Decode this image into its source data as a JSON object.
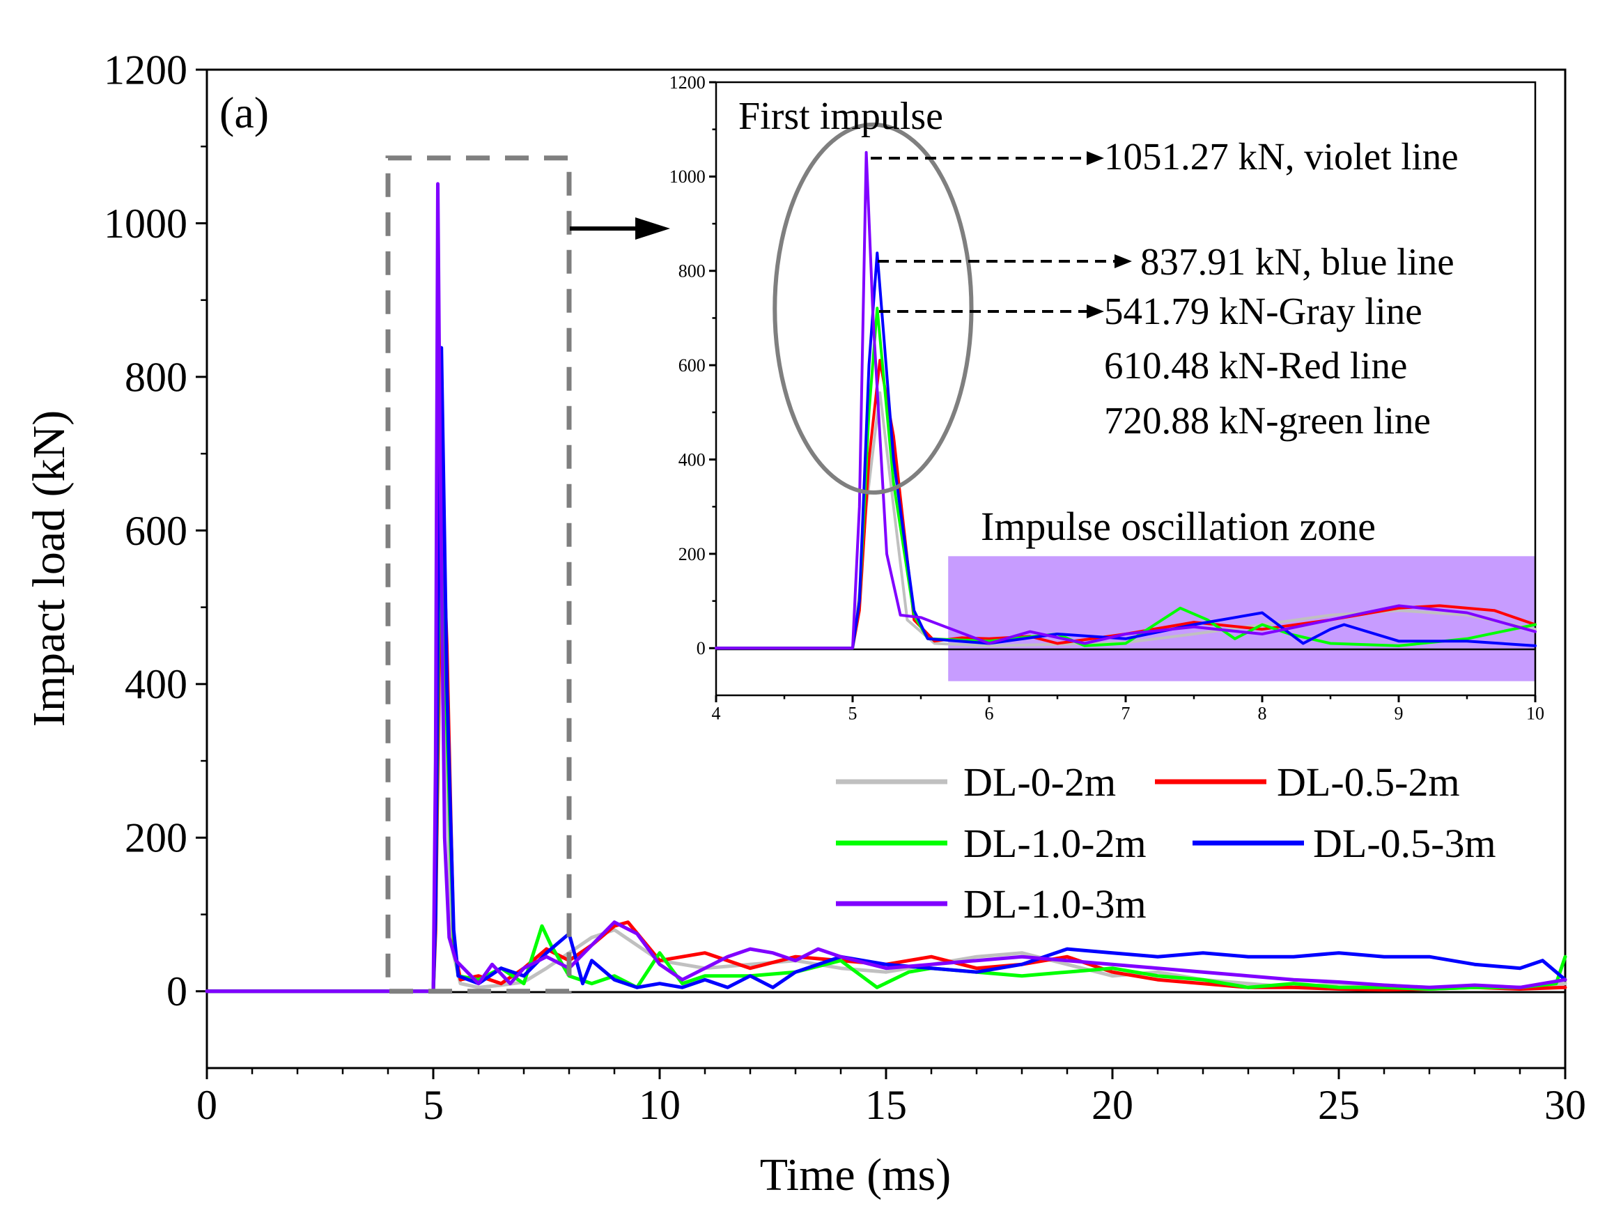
{
  "chart_data": [
    {
      "type": "line",
      "panel_label": "(a)",
      "xlabel": "Time (ms)",
      "ylabel": "Impact load (kN)",
      "xlim": [
        0,
        30
      ],
      "ylim": [
        -100,
        1200
      ],
      "xticks": [
        0,
        5,
        10,
        15,
        20,
        25,
        30
      ],
      "yticks": [
        0,
        200,
        400,
        600,
        800,
        1000,
        1200
      ],
      "xtick_labels": [
        "0",
        "5",
        "10",
        "15",
        "20",
        "25",
        "30"
      ],
      "ytick_labels": [
        "0",
        "200",
        "400",
        "600",
        "800",
        "1000",
        "1200"
      ],
      "grid": false,
      "legend_position": "lower-right",
      "zoom_region": {
        "x": [
          4,
          8
        ],
        "y": [
          0,
          1085
        ]
      },
      "series": [
        {
          "name": "DL-0-2m",
          "color": "#c0c0c0",
          "x": [
            0,
            5.0,
            5.05,
            5.15,
            5.2,
            5.3,
            5.4,
            5.6,
            6.0,
            6.5,
            7.0,
            7.5,
            8.0,
            8.5,
            9.0,
            10.0,
            11.0,
            12.0,
            13.0,
            14.0,
            15.0,
            16.0,
            17.0,
            18.0,
            19.0,
            20.0,
            21.0,
            22.0,
            23.0,
            24.0,
            25.0,
            26.0,
            27.0,
            28.0,
            29.0,
            30.0
          ],
          "y": [
            0,
            0,
            120,
            420,
            541.79,
            300,
            60,
            10,
            5,
            8,
            12,
            30,
            50,
            70,
            80,
            40,
            30,
            35,
            40,
            30,
            25,
            35,
            45,
            50,
            35,
            20,
            25,
            15,
            10,
            5,
            10,
            8,
            5,
            5,
            5,
            10
          ]
        },
        {
          "name": "DL-0.5-2m",
          "color": "#ff0000",
          "x": [
            0,
            5.0,
            5.05,
            5.12,
            5.2,
            5.3,
            5.45,
            5.6,
            6.0,
            6.5,
            7.0,
            7.5,
            8.0,
            8.5,
            9.0,
            9.3,
            10.0,
            11.0,
            12.0,
            13.0,
            14.0,
            15.0,
            16.0,
            17.0,
            18.0,
            19.0,
            20.0,
            21.0,
            22.0,
            23.0,
            24.0,
            25.0,
            26.0,
            27.0,
            28.0,
            29.0,
            30.0
          ],
          "y": [
            0,
            0,
            80,
            400,
            610.48,
            450,
            60,
            15,
            20,
            10,
            30,
            55,
            40,
            60,
            85,
            90,
            40,
            50,
            30,
            45,
            40,
            35,
            45,
            30,
            35,
            45,
            25,
            15,
            10,
            5,
            5,
            3,
            2,
            3,
            5,
            3,
            5
          ]
        },
        {
          "name": "DL-1.0-2m",
          "color": "#00ff00",
          "x": [
            0,
            5.0,
            5.05,
            5.12,
            5.18,
            5.3,
            5.45,
            5.55,
            6.0,
            6.5,
            7.0,
            7.4,
            7.6,
            8.0,
            8.5,
            9.0,
            9.5,
            10.0,
            10.5,
            11.0,
            12.0,
            13.0,
            14.0,
            14.8,
            15.5,
            16.0,
            17.0,
            18.0,
            19.0,
            20.0,
            21.0,
            22.0,
            23.0,
            24.0,
            25.0,
            26.0,
            27.0,
            28.0,
            29.0,
            29.8,
            30.0
          ],
          "y": [
            0,
            0,
            100,
            500,
            720.88,
            350,
            70,
            20,
            15,
            30,
            10,
            85,
            60,
            20,
            10,
            20,
            5,
            50,
            10,
            20,
            20,
            25,
            40,
            5,
            25,
            30,
            25,
            20,
            25,
            30,
            20,
            15,
            5,
            10,
            5,
            5,
            3,
            5,
            5,
            10,
            45
          ]
        },
        {
          "name": "DL-0.5-3m",
          "color": "#0000ff",
          "x": [
            0,
            5.0,
            5.05,
            5.12,
            5.18,
            5.3,
            5.45,
            5.55,
            6.0,
            6.5,
            7.0,
            7.5,
            8.0,
            8.3,
            8.5,
            9.0,
            9.5,
            10.0,
            10.5,
            11.0,
            11.5,
            12.0,
            12.5,
            13.0,
            14.0,
            15.0,
            16.0,
            17.0,
            18.0,
            19.0,
            20.0,
            21.0,
            22.0,
            23.0,
            24.0,
            25.0,
            26.0,
            27.0,
            28.0,
            29.0,
            29.5,
            30.0
          ],
          "y": [
            0,
            0,
            100,
            600,
            837.91,
            400,
            80,
            20,
            10,
            30,
            20,
            50,
            75,
            10,
            40,
            15,
            5,
            10,
            5,
            15,
            5,
            20,
            5,
            25,
            45,
            35,
            30,
            25,
            35,
            55,
            50,
            45,
            50,
            45,
            45,
            50,
            45,
            45,
            35,
            30,
            40,
            15
          ]
        },
        {
          "name": "DL-1.0-3m",
          "color": "#8000ff",
          "x": [
            0,
            5.0,
            5.05,
            5.1,
            5.15,
            5.25,
            5.35,
            5.5,
            6.0,
            6.3,
            6.7,
            7.0,
            7.5,
            8.0,
            8.5,
            9.0,
            9.5,
            10.0,
            10.5,
            11.0,
            11.5,
            12.0,
            12.5,
            13.0,
            13.5,
            14.0,
            15.0,
            16.0,
            17.0,
            18.0,
            19.0,
            20.0,
            21.0,
            22.0,
            23.0,
            24.0,
            25.0,
            26.0,
            27.0,
            28.0,
            29.0,
            30.0
          ],
          "y": [
            0,
            0,
            300,
            1051.27,
            700,
            200,
            70,
            40,
            10,
            35,
            10,
            30,
            45,
            30,
            60,
            90,
            75,
            35,
            15,
            30,
            45,
            55,
            50,
            40,
            55,
            45,
            30,
            35,
            40,
            45,
            40,
            35,
            30,
            25,
            20,
            15,
            12,
            8,
            5,
            8,
            5,
            15
          ]
        }
      ]
    },
    {
      "type": "line",
      "role": "inset",
      "xlim": [
        4,
        10
      ],
      "ylim": [
        -100,
        1200
      ],
      "xticks": [
        4,
        5,
        6,
        7,
        8,
        9,
        10
      ],
      "yticks": [
        0,
        200,
        400,
        600,
        800,
        1000,
        1200
      ],
      "xtick_labels": [
        "4",
        "5",
        "6",
        "7",
        "8",
        "9",
        "10"
      ],
      "ytick_labels": [
        "0",
        "200",
        "400",
        "600",
        "800",
        "1000",
        "1200"
      ],
      "highlight_zone": {
        "x": [
          5.7,
          10
        ],
        "y": [
          -70,
          195
        ],
        "color": "#c79cff"
      },
      "peak_circle": {
        "cx": 5.15,
        "cy": 720,
        "rx": 0.72,
        "ry": 390
      },
      "series": [
        {
          "name": "DL-0-2m",
          "color": "#c0c0c0",
          "x": [
            4,
            5.0,
            5.05,
            5.1,
            5.15,
            5.2,
            5.3,
            5.4,
            5.6,
            6.0,
            6.5,
            7.0,
            7.5,
            8.0,
            8.5,
            9.0,
            9.5,
            10.0
          ],
          "y": [
            0,
            0,
            120,
            300,
            420,
            541.79,
            300,
            60,
            10,
            5,
            8,
            12,
            30,
            50,
            70,
            80,
            70,
            40
          ]
        },
        {
          "name": "DL-0.5-2m",
          "color": "#ff0000",
          "x": [
            4,
            5.0,
            5.05,
            5.12,
            5.2,
            5.3,
            5.45,
            5.6,
            5.8,
            6.0,
            6.3,
            6.5,
            7.0,
            7.5,
            8.0,
            8.5,
            9.0,
            9.3,
            9.7,
            10.0
          ],
          "y": [
            0,
            0,
            80,
            400,
            610.48,
            450,
            60,
            15,
            22,
            20,
            25,
            10,
            30,
            55,
            40,
            60,
            85,
            90,
            80,
            50
          ]
        },
        {
          "name": "DL-1.0-2m",
          "color": "#00ff00",
          "x": [
            4,
            5.0,
            5.05,
            5.12,
            5.18,
            5.3,
            5.45,
            5.55,
            6.0,
            6.5,
            6.7,
            7.0,
            7.4,
            7.6,
            7.8,
            8.0,
            8.2,
            8.5,
            9.0,
            9.5,
            10.0
          ],
          "y": [
            0,
            0,
            100,
            500,
            720.88,
            350,
            70,
            20,
            15,
            30,
            5,
            10,
            85,
            60,
            20,
            50,
            30,
            10,
            5,
            20,
            50
          ]
        },
        {
          "name": "DL-0.5-3m",
          "color": "#0000ff",
          "x": [
            4,
            5.0,
            5.05,
            5.12,
            5.18,
            5.3,
            5.45,
            5.55,
            6.0,
            6.5,
            7.0,
            7.5,
            8.0,
            8.3,
            8.5,
            8.6,
            9.0,
            9.5,
            10.0
          ],
          "y": [
            0,
            0,
            100,
            600,
            837.91,
            400,
            80,
            20,
            10,
            30,
            20,
            50,
            75,
            10,
            40,
            50,
            15,
            15,
            5
          ]
        },
        {
          "name": "DL-1.0-3m",
          "color": "#8000ff",
          "x": [
            4,
            5.0,
            5.05,
            5.1,
            5.15,
            5.25,
            5.35,
            5.5,
            6.0,
            6.3,
            6.7,
            7.0,
            7.5,
            8.0,
            8.5,
            9.0,
            9.5,
            10.0
          ],
          "y": [
            0,
            0,
            300,
            1051.27,
            700,
            200,
            70,
            65,
            10,
            35,
            10,
            30,
            45,
            30,
            60,
            90,
            75,
            35
          ]
        }
      ]
    }
  ],
  "annotations": {
    "first_impulse": "First impulse",
    "violet_peak": "1051.27 kN, violet line",
    "blue_peak": "837.91 kN, blue line",
    "gray_peak": "541.79 kN-Gray line",
    "red_peak": "610.48 kN-Red line",
    "green_peak": "720.88 kN-green line",
    "oscillation_zone": "Impulse oscillation zone"
  },
  "colors": {
    "axis": "#000000",
    "zoom_box": "#7f7f7f",
    "circle": "#7f7f7f",
    "zone": "#c79cff"
  }
}
